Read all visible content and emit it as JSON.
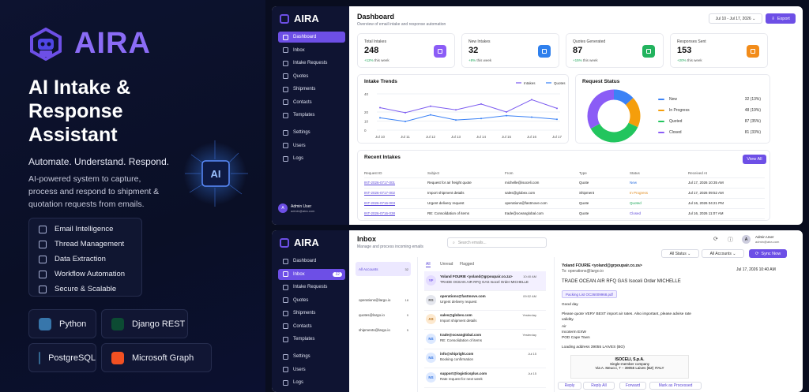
{
  "brand": {
    "name": "AIRA",
    "accent": "#8b6cf6"
  },
  "hero": {
    "title": "AI Intake & Response Assistant",
    "tagline": "Automate. Understand. Respond.",
    "description": "AI-powered system to capture, process and respond to shipment & quotation requests from emails.",
    "chip_label": "AI"
  },
  "features": [
    {
      "label": "Email Intelligence",
      "icon": "mail-icon"
    },
    {
      "label": "Thread Management",
      "icon": "thread-icon"
    },
    {
      "label": "Data Extraction",
      "icon": "document-icon"
    },
    {
      "label": "Workflow Automation",
      "icon": "workflow-icon"
    },
    {
      "label": "Secure & Scalable",
      "icon": "shield-icon"
    }
  ],
  "tech": [
    {
      "label": "Python",
      "icon": "python-icon"
    },
    {
      "label": "Django REST",
      "icon": "django-icon"
    },
    {
      "label": "PostgreSQL",
      "icon": "postgresql-icon"
    },
    {
      "label": "Microsoft Graph",
      "icon": "microsoft-icon"
    }
  ],
  "sidebar": {
    "logo": "AIRA",
    "items": [
      "Dashboard",
      "Inbox",
      "Intake Requests",
      "Quotes",
      "Shipments",
      "Contacts",
      "Templates"
    ],
    "bottom": [
      "Settings",
      "Users",
      "Logs"
    ],
    "inbox_badge": "32",
    "user": {
      "name": "Admin User",
      "email": "admin@aira.com",
      "initials": "A"
    }
  },
  "dashboard": {
    "title": "Dashboard",
    "subtitle": "Overview of email intake and response automation",
    "date_range": "Jul 10 - Jul 17, 2026",
    "export_label": "Export",
    "stats": [
      {
        "label": "Total Intakes",
        "value": "248",
        "change": "+12%",
        "note": "this week",
        "color": "#8b5cf6"
      },
      {
        "label": "New Intakes",
        "value": "32",
        "change": "+8%",
        "note": "this week",
        "color": "#2f80ed"
      },
      {
        "label": "Quotes Generated",
        "value": "87",
        "change": "+15%",
        "note": "this week",
        "color": "#22b35e"
      },
      {
        "label": "Responses Sent",
        "value": "153",
        "change": "+20%",
        "note": "this week",
        "color": "#f28c1a"
      }
    ],
    "trends_title": "Intake Trends",
    "status_title": "Request Status",
    "status": [
      {
        "name": "New",
        "value": "32 (13%)",
        "color": "#3b82f6"
      },
      {
        "name": "In Progress",
        "value": "48 (19%)",
        "color": "#f59e0b"
      },
      {
        "name": "Quoted",
        "value": "87 (35%)",
        "color": "#22c55e"
      },
      {
        "name": "Closed",
        "value": "81 (33%)",
        "color": "#8b5cf6"
      }
    ],
    "recent_title": "Recent Intakes",
    "view_all": "View All",
    "columns": [
      "Request ID",
      "Subject",
      "From",
      "Type",
      "Status",
      "Received At"
    ],
    "rows": [
      {
        "id": "INT-2026-0717-001",
        "subject": "Request for air freight quote",
        "from": "michelle@isoceli.com",
        "type": "Quote",
        "status": "New",
        "cls": "st-new",
        "at": "Jul 17, 2026 10:35 AM"
      },
      {
        "id": "INT-2026-0717-002",
        "subject": "Import shipment details",
        "from": "sales@globex.com",
        "type": "Shipment",
        "status": "In Progress",
        "cls": "st-prog",
        "at": "Jul 17, 2026 09:52 AM"
      },
      {
        "id": "INT-2026-0716-003",
        "subject": "Urgent delivery request",
        "from": "operations@fastmove.com",
        "type": "Quote",
        "status": "Quoted",
        "cls": "st-quot",
        "at": "Jul 16, 2026 04:21 PM"
      },
      {
        "id": "INT-2026-0716-038",
        "subject": "RE: Consolidation of items",
        "from": "trade@oceanglobal.com",
        "type": "Quote",
        "status": "Closed",
        "cls": "st-clos",
        "at": "Jul 16, 2026 11:07 AM"
      }
    ]
  },
  "chart_data": {
    "type": "line",
    "title": "Intake Trends",
    "categories": [
      "Jul 10",
      "Jul 11",
      "Jul 12",
      "Jul 13",
      "Jul 14",
      "Jul 15",
      "Jul 16",
      "Jul 17"
    ],
    "series": [
      {
        "name": "Intakes",
        "color": "#7c5cf0",
        "values": [
          31,
          24,
          33,
          28,
          36,
          25,
          42,
          30
        ]
      },
      {
        "name": "Quotes",
        "color": "#3b82f6",
        "values": [
          17,
          12,
          21,
          14,
          16,
          20,
          18,
          15
        ]
      }
    ],
    "yticks": [
      "40",
      "20",
      "10",
      "0"
    ],
    "ylim": [
      0,
      50
    ],
    "legend": "top-right"
  },
  "donut": {
    "values": [
      13,
      19,
      35,
      33
    ],
    "colors": [
      "#3b82f6",
      "#f59e0b",
      "#22c55e",
      "#8b5cf6"
    ]
  },
  "inbox": {
    "title": "Inbox",
    "subtitle": "Manage and process incoming emails",
    "search_placeholder": "Search emails...",
    "user_name": "Admin User",
    "user_email": "admin@aira.com",
    "filters": [
      "All Status",
      "All Accounts"
    ],
    "sync_label": "Sync Now",
    "accounts": [
      {
        "label": "All Accounts",
        "count": "32"
      },
      {
        "label": "operations@largo.io",
        "count": "18"
      },
      {
        "label": "quotes@largo.io",
        "count": "9"
      },
      {
        "label": "shipments@largo.io",
        "count": "5"
      }
    ],
    "tabs": [
      "All",
      "Unread",
      "Flagged"
    ],
    "messages": [
      {
        "initials": "YF",
        "from": "Yoland FOURIE <yoland@grpoupair.co.za>",
        "subject": "TRADE OCEAN AIR RFQ GAS Isocel Order MICHELLE",
        "date": "10:40 AM",
        "bg": "#e4dcff",
        "fg": "#6d4fe6"
      },
      {
        "initials": "RS",
        "from": "operations@fastmove.com",
        "subject": "Urgent delivery request",
        "date": "09:52 AM",
        "bg": "#e5e7ee",
        "fg": "#555"
      },
      {
        "initials": "AS",
        "from": "sales@globex.com",
        "subject": "Import shipment details",
        "date": "Yesterday",
        "bg": "#fde9cf",
        "fg": "#b26a12"
      },
      {
        "initials": "NS",
        "from": "trade@oceanglobal.com",
        "subject": "RE: Consolidation of items",
        "date": "Yesterday",
        "bg": "#dde9ff",
        "fg": "#2b6fe0"
      },
      {
        "initials": "NS",
        "from": "info@shipright.com",
        "subject": "Booking confirmation",
        "date": "Jul 15",
        "bg": "#dde9ff",
        "fg": "#2b6fe0"
      },
      {
        "initials": "NS",
        "from": "support@logisticsplus.com",
        "subject": "Rate request for next week",
        "date": "Jul 15",
        "bg": "#dde9ff",
        "fg": "#2b6fe0"
      }
    ],
    "email": {
      "from": "Yoland FOURIE <yoland@grpoupair.co.za>",
      "to": "To: operations@largo.io",
      "date": "Jul 17, 2026 10:40 AM",
      "subject": "TRADE OCEAN AIR RFQ GAS Isoceli Order MICHELLE",
      "attachment": "Packing List OC26009968.pdf",
      "body": [
        "Good day",
        "Please quote VERY BEST import air rates. Also important, please advise rate",
        "validity.",
        "Air",
        "Incoterm EXW",
        "POD Cape Town",
        "Loading address 39055 LAIVES (BO)"
      ],
      "sig": [
        "ISOCELI, S.p.A.",
        "Single-member company",
        "Via A. Meucci, 7 – 39055 Laives (BZ) ITALY"
      ],
      "actions": [
        "Reply",
        "Reply All",
        "Forward",
        "Mark as Processed"
      ]
    }
  }
}
